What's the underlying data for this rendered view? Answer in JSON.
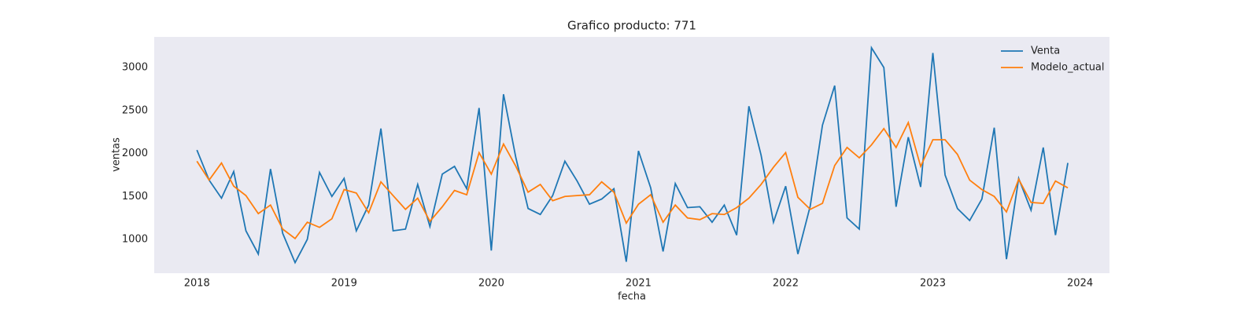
{
  "chart_data": {
    "type": "line",
    "title": "Grafico producto: 771",
    "xlabel": "fecha",
    "ylabel": "ventas",
    "x": [
      2018.0,
      2018.083,
      2018.167,
      2018.25,
      2018.333,
      2018.417,
      2018.5,
      2018.583,
      2018.667,
      2018.75,
      2018.833,
      2018.917,
      2019.0,
      2019.083,
      2019.167,
      2019.25,
      2019.333,
      2019.417,
      2019.5,
      2019.583,
      2019.667,
      2019.75,
      2019.833,
      2019.917,
      2020.0,
      2020.083,
      2020.167,
      2020.25,
      2020.333,
      2020.417,
      2020.5,
      2020.583,
      2020.667,
      2020.75,
      2020.833,
      2020.917,
      2021.0,
      2021.083,
      2021.167,
      2021.25,
      2021.333,
      2021.417,
      2021.5,
      2021.583,
      2021.667,
      2021.75,
      2021.833,
      2021.917,
      2022.0,
      2022.083,
      2022.167,
      2022.25,
      2022.333,
      2022.417,
      2022.5,
      2022.583,
      2022.667,
      2022.75,
      2022.833,
      2022.917,
      2023.0,
      2023.083,
      2023.167,
      2023.25,
      2023.333,
      2023.417,
      2023.5,
      2023.583,
      2023.667,
      2023.75,
      2023.833,
      2023.917
    ],
    "series": [
      {
        "name": "Venta",
        "color": "#1f77b4",
        "values": [
          2040,
          1690,
          1480,
          1790,
          1100,
          830,
          1820,
          1070,
          730,
          1000,
          1780,
          1500,
          1710,
          1100,
          1400,
          2290,
          1100,
          1120,
          1640,
          1150,
          1760,
          1850,
          1590,
          2530,
          870,
          2690,
          1950,
          1360,
          1290,
          1510,
          1910,
          1680,
          1410,
          1470,
          1590,
          740,
          2030,
          1600,
          860,
          1650,
          1370,
          1380,
          1200,
          1400,
          1050,
          2550,
          1980,
          1200,
          1620,
          830,
          1390,
          2330,
          2790,
          1250,
          1120,
          3230,
          3000,
          1380,
          2190,
          1610,
          3170,
          1750,
          1360,
          1220,
          1470,
          2300,
          770,
          1710,
          1340,
          2070,
          1050,
          1890
        ]
      },
      {
        "name": "Modelo_actual",
        "color": "#ff7f0e",
        "values": [
          1910,
          1690,
          1890,
          1620,
          1510,
          1300,
          1400,
          1120,
          1010,
          1200,
          1140,
          1240,
          1580,
          1540,
          1310,
          1670,
          1510,
          1350,
          1480,
          1210,
          1380,
          1570,
          1520,
          2010,
          1760,
          2110,
          1850,
          1550,
          1640,
          1450,
          1500,
          1510,
          1520,
          1670,
          1550,
          1190,
          1410,
          1520,
          1200,
          1400,
          1250,
          1230,
          1300,
          1290,
          1370,
          1480,
          1640,
          1840,
          2010,
          1490,
          1350,
          1420,
          1860,
          2070,
          1950,
          2100,
          2290,
          2070,
          2360,
          1850,
          2160,
          2160,
          1990,
          1690,
          1580,
          1500,
          1320,
          1700,
          1430,
          1420,
          1680,
          1600
        ]
      }
    ],
    "xlim": [
      2017.71,
      2024.2
    ],
    "xticks": [
      2018,
      2019,
      2020,
      2021,
      2022,
      2023,
      2024
    ],
    "ylim": [
      607,
      3357
    ],
    "yticks": [
      1000,
      1500,
      2000,
      2500,
      3000
    ],
    "grid": false,
    "legend": "upper right",
    "background": "#eaeaf2"
  }
}
